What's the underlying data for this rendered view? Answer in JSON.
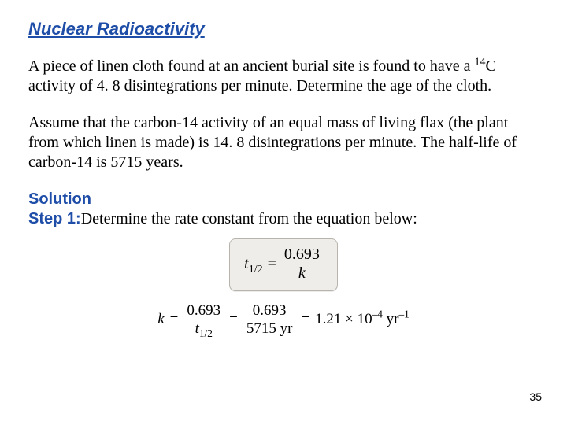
{
  "title": "Nuclear Radioactivity",
  "problem": {
    "p1_a": "A piece of linen cloth found at an ancient burial site is found to have a ",
    "sup1": "14",
    "p1_b": "C activity of 4. 8 disintegrations per minute. Determine the age of the cloth.",
    "p2": "Assume that the carbon-14 activity of an equal mass of living flax (the plant from which linen is made) is 14. 8 disintegrations per minute. The half-life of carbon-14 is 5715 years."
  },
  "solution": {
    "label": "Solution",
    "step_label": "Step 1:",
    "step_text": "Determine the rate constant from the equation below:"
  },
  "formula": {
    "lhs_var": "t",
    "lhs_sub": "1/2",
    "eq": "=",
    "num": "0.693",
    "den": "k"
  },
  "calc": {
    "k": "k",
    "eq": "=",
    "f1_num": "0.693",
    "f1_den_var": "t",
    "f1_den_sub": "1/2",
    "f2_num": "0.693",
    "f2_den": "5715 yr",
    "result_a": "1.21",
    "result_mul": "×",
    "result_exp_base": "10",
    "result_exp": "–4",
    "result_unit_a": "yr",
    "result_unit_exp": "–1"
  },
  "page_number": "35"
}
